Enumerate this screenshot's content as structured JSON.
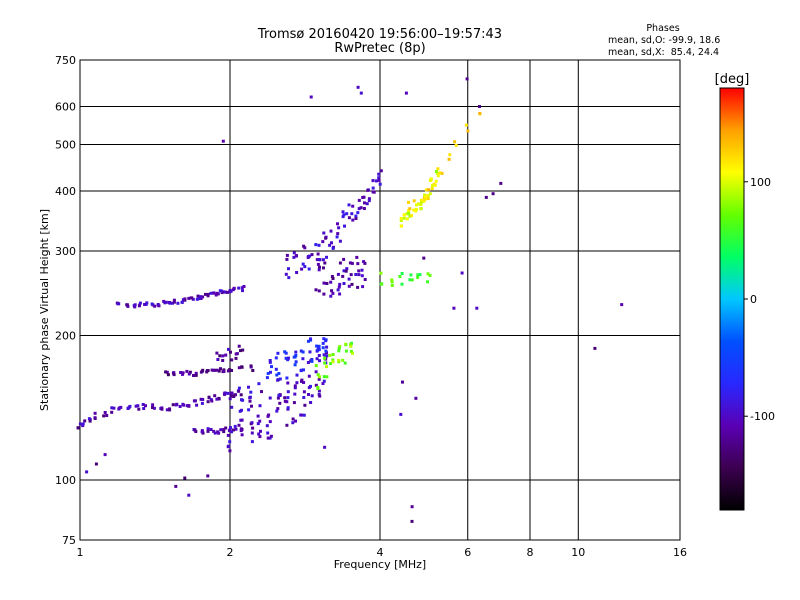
{
  "title_line1": "Tromsø 20160420 19:56:00–19:57:43",
  "title_line2": "RwPretec (8p)",
  "stats": {
    "heading": "Phases",
    "o_line": "mean, sd,O: -99.9, 18.6",
    "x_line": "mean, sd,X:  85.4, 24.4"
  },
  "colorbar": {
    "label": "[deg]",
    "ticks": [
      {
        "value": 100,
        "label": "100"
      },
      {
        "value": 0,
        "label": "0"
      },
      {
        "value": -100,
        "label": "-100"
      }
    ],
    "range": [
      -180,
      180
    ],
    "colormap": [
      "#000000",
      "#3c0050",
      "#5a00b4",
      "#2828ff",
      "#0050ff",
      "#00c8ff",
      "#00ff64",
      "#64ff00",
      "#ffff00",
      "#ffa000",
      "#ff0000"
    ]
  },
  "chart_data": {
    "type": "scatter",
    "title": "Tromsø 20160420 19:56:00–19:57:43",
    "subtitle": "RwPretec (8p)",
    "xlabel": "Frequency [MHz]",
    "ylabel": "Stationary phase Virtual Height [km]",
    "x_scale": "log",
    "y_scale": "log",
    "xlim": [
      1,
      16
    ],
    "ylim": [
      75,
      750
    ],
    "x_ticks": [
      1,
      2,
      4,
      6,
      8,
      10,
      16
    ],
    "y_ticks": [
      75,
      100,
      200,
      300,
      400,
      500,
      600,
      750
    ],
    "grid": true,
    "traces": [
      {
        "name": "",
        "x": [
          1.2,
          1.24,
          1.28,
          1.32,
          1.36,
          1.4,
          1.44,
          1.48,
          1.52,
          1.56,
          1.6,
          1.64,
          1.68,
          1.72,
          1.76,
          1.8,
          1.84,
          1.88,
          1.92,
          1.96,
          2.0,
          2.05,
          2.1
        ],
        "y": [
          232,
          231,
          231,
          232,
          233,
          232,
          232,
          234,
          234,
          235,
          236,
          238,
          238,
          240,
          240,
          242,
          244,
          244,
          246,
          246,
          248,
          250,
          250
        ],
        "spread": 2,
        "n": 3,
        "phase": -105
      },
      {
        "name": "",
        "x": [
          1.0,
          1.02,
          1.05,
          1.08,
          1.12,
          1.16,
          1.2,
          1.25,
          1.3,
          1.35,
          1.4,
          1.45,
          1.5,
          1.55,
          1.6,
          1.65,
          1.7,
          1.75,
          1.8,
          1.85,
          1.9,
          1.95,
          2.0,
          2.05,
          2.1
        ],
        "y": [
          130,
          131,
          133,
          136,
          138,
          140,
          141,
          141,
          141,
          142,
          142,
          142,
          142,
          143,
          143,
          144,
          145,
          146,
          147,
          148,
          149,
          150,
          151,
          151,
          152
        ],
        "spread": 2,
        "n": 3,
        "phase": -110
      },
      {
        "name": "",
        "x": [
          1.5,
          1.55,
          1.6,
          1.65,
          1.7,
          1.75,
          1.8,
          1.85,
          1.9,
          1.95,
          2.0,
          2.1,
          2.2
        ],
        "y": [
          166,
          166,
          166,
          167,
          167,
          168,
          168,
          169,
          170,
          170,
          170,
          171,
          171
        ],
        "spread": 2,
        "n": 3,
        "phase": -120
      },
      {
        "name": "",
        "x": [
          1.7,
          1.75,
          1.8,
          1.85,
          1.9,
          1.95,
          2.0,
          2.05,
          2.1,
          2.2
        ],
        "y": [
          126,
          126,
          126,
          126,
          127,
          127,
          127,
          128,
          129,
          130
        ],
        "spread": 2,
        "n": 3,
        "phase": -108
      },
      {
        "name": "",
        "x": [
          1.9,
          1.95,
          2.0,
          2.05,
          2.1
        ],
        "y": [
          178,
          180,
          182,
          184,
          186
        ],
        "spread": 6,
        "n": 3,
        "phase": -115
      },
      {
        "name": "",
        "x": [
          2.0,
          2.1,
          2.2,
          2.3,
          2.4,
          2.5,
          2.6,
          2.7,
          2.8,
          2.9,
          3.0,
          3.1
        ],
        "y": [
          135,
          137,
          138,
          140,
          141,
          143,
          146,
          150,
          155,
          160,
          168,
          175
        ],
        "spread": 20,
        "n": 9,
        "phase": -100
      },
      {
        "name": "",
        "x": [
          2.4,
          2.5,
          2.6,
          2.7,
          2.8,
          2.9,
          3.0,
          3.1
        ],
        "y": [
          170,
          172,
          174,
          176,
          180,
          185,
          190,
          195
        ],
        "spread": 12,
        "n": 6,
        "phase": -70
      },
      {
        "name": "",
        "x": [
          3.0,
          3.1,
          3.2,
          3.3,
          3.4,
          3.5
        ],
        "y": [
          165,
          170,
          175,
          180,
          185,
          190
        ],
        "spread": 10,
        "n": 5,
        "phase": 75
      },
      {
        "name": "",
        "x": [
          2.6,
          2.7,
          2.8,
          2.9,
          3.0,
          3.1,
          3.2,
          3.3,
          3.4,
          3.5,
          3.6,
          3.7,
          3.8,
          3.9,
          4.0
        ],
        "y": [
          280,
          285,
          290,
          295,
          300,
          310,
          320,
          330,
          345,
          355,
          370,
          380,
          395,
          410,
          430
        ],
        "spread": 20,
        "n": 5,
        "phase": -100
      },
      {
        "name": "",
        "x": [
          3.0,
          3.1,
          3.2,
          3.3,
          3.4,
          3.5,
          3.6,
          3.7
        ],
        "y": [
          265,
          265,
          266,
          266,
          266,
          267,
          268,
          268
        ],
        "spread": 25,
        "n": 6,
        "phase": -110
      },
      {
        "name": "",
        "x": [
          4.4,
          4.5,
          4.6,
          4.7,
          4.8,
          4.9,
          5.0,
          5.1,
          5.2
        ],
        "y": [
          345,
          350,
          358,
          366,
          375,
          385,
          400,
          420,
          440
        ],
        "spread": 10,
        "n": 4,
        "phase": 100
      },
      {
        "name": "",
        "x": [
          4.0,
          4.2,
          4.4,
          4.6,
          4.8,
          5.0
        ],
        "y": [
          262,
          262,
          263,
          263,
          264,
          264
        ],
        "spread": 8,
        "n": 3,
        "phase": 60
      },
      {
        "name": "",
        "x": [
          4.6,
          4.7,
          4.8,
          4.9,
          5.0,
          5.1,
          5.2,
          5.3,
          5.5,
          5.7,
          6.0,
          6.3
        ],
        "y": [
          370,
          375,
          380,
          385,
          395,
          405,
          420,
          440,
          470,
          500,
          540,
          580
        ],
        "spread": 10,
        "n": 2,
        "phase": 120
      },
      {
        "name": "",
        "x": [
          1.03,
          1.08,
          1.12,
          1.55,
          1.62,
          1.66,
          1.82,
          1.92,
          2.12,
          2.9,
          3.08,
          3.6,
          3.7,
          4.55,
          4.6,
          4.65,
          5.6,
          6.3,
          6.6,
          6.7,
          7.0,
          10.8,
          12.3,
          4.47,
          4.4,
          4.7,
          6.0,
          6.3,
          5.8,
          4.9
        ],
        "y": [
          104,
          108,
          113,
          97,
          101,
          93,
          102,
          508,
          253,
          628,
          117,
          658,
          640,
          640,
          82,
          88,
          228,
          228,
          388,
          395,
          415,
          188,
          232,
          160,
          137,
          148,
          685,
          600,
          270,
          290
        ],
        "spread": 0,
        "n": 1,
        "phase": -110
      }
    ]
  }
}
